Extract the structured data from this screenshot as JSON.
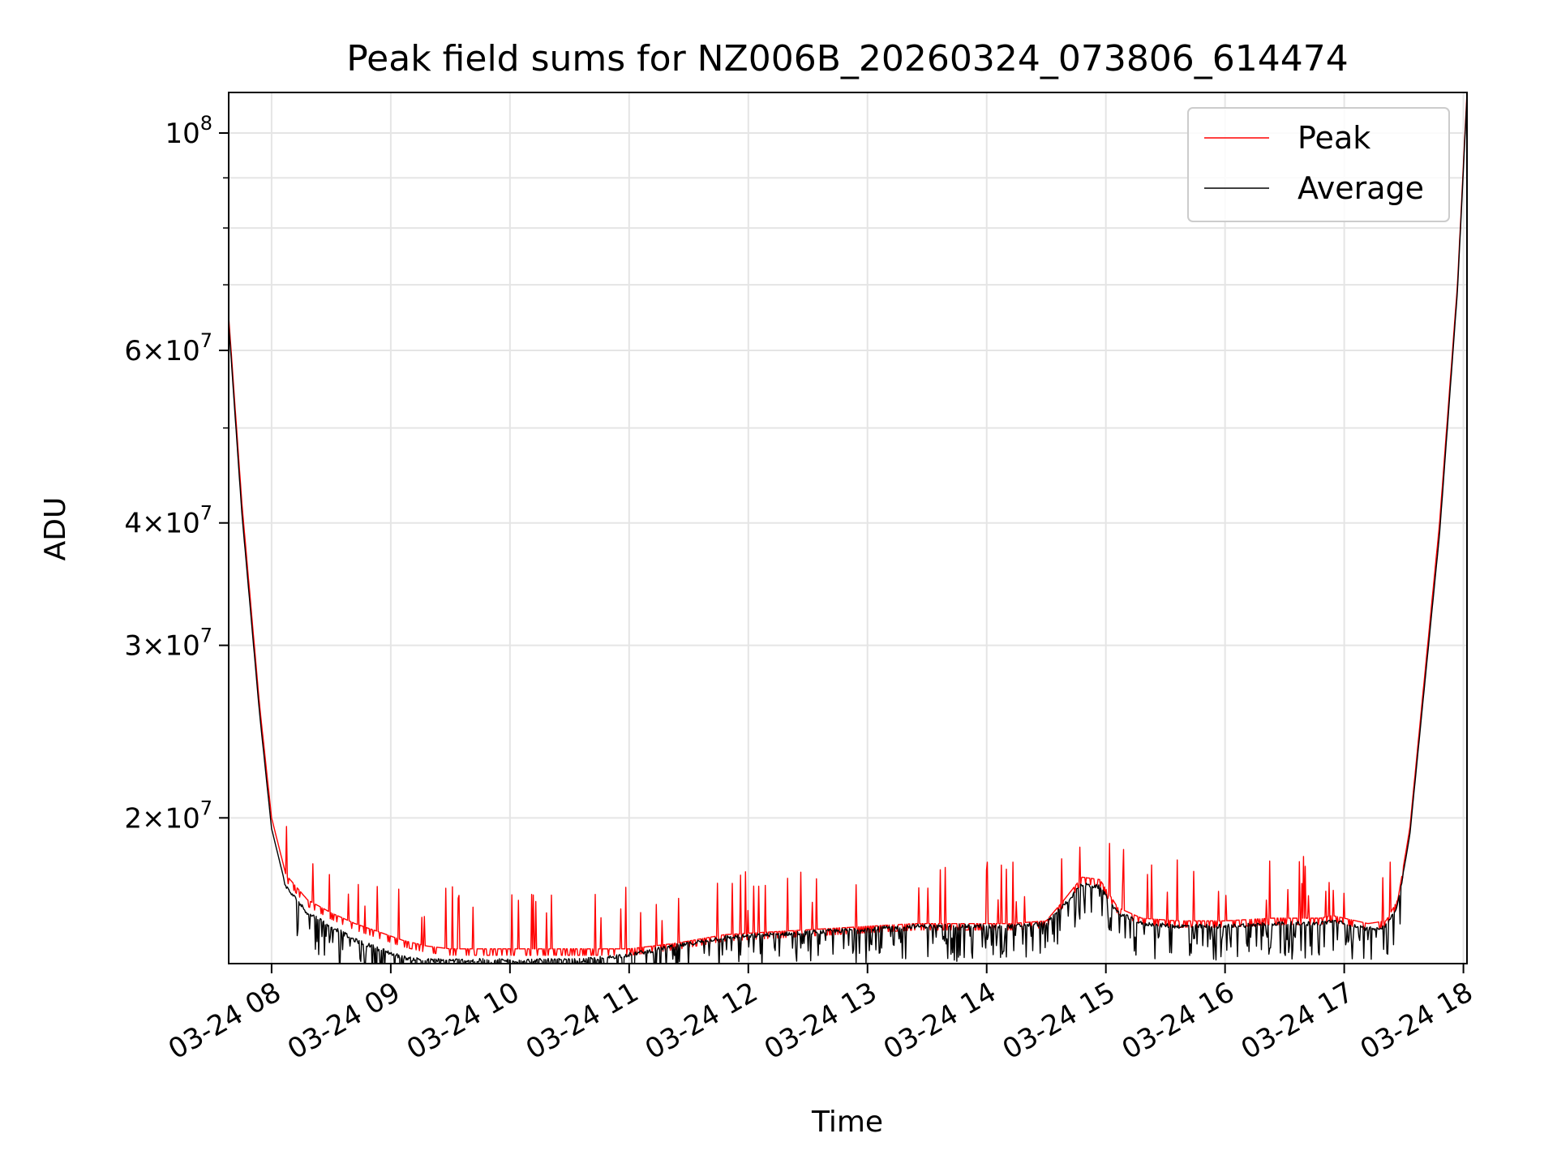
{
  "chart_data": {
    "type": "line",
    "title": "Peak field sums for NZ006B_20260324_073806_614474",
    "xlabel": "Time",
    "ylabel": "ADU",
    "y_scale": "log",
    "xlim_hours": [
      7.64,
      18.03
    ],
    "ylim": [
      14200000,
      110000000
    ],
    "grid": true,
    "legend_position": "top-right",
    "x_ticks": [
      {
        "hour": 8,
        "label": "03-24 08"
      },
      {
        "hour": 9,
        "label": "03-24 09"
      },
      {
        "hour": 10,
        "label": "03-24 10"
      },
      {
        "hour": 11,
        "label": "03-24 11"
      },
      {
        "hour": 12,
        "label": "03-24 12"
      },
      {
        "hour": 13,
        "label": "03-24 13"
      },
      {
        "hour": 14,
        "label": "03-24 14"
      },
      {
        "hour": 15,
        "label": "03-24 15"
      },
      {
        "hour": 16,
        "label": "03-24 16"
      },
      {
        "hour": 17,
        "label": "03-24 17"
      },
      {
        "hour": 18,
        "label": "03-24 18"
      }
    ],
    "y_major_ticks": [
      {
        "value": 20000000,
        "mantissa": "2",
        "exponent": "7"
      },
      {
        "value": 30000000,
        "mantissa": "3",
        "exponent": "7"
      },
      {
        "value": 40000000,
        "mantissa": "4",
        "exponent": "7"
      },
      {
        "value": 60000000,
        "mantissa": "6",
        "exponent": "7"
      },
      {
        "value": 100000000,
        "mantissa": "",
        "exponent": "8"
      }
    ],
    "y_minor_ticks": [
      50000000,
      70000000,
      80000000,
      90000000
    ],
    "series": [
      {
        "name": "Peak",
        "color": "#ff0000",
        "x_hours": [
          7.64,
          7.75,
          7.9,
          8.0,
          8.12,
          8.3,
          8.5,
          8.7,
          8.9,
          9.1,
          9.3,
          9.5,
          9.8,
          10.2,
          10.6,
          11.0,
          11.4,
          11.8,
          12.2,
          12.6,
          13.0,
          13.4,
          13.8,
          14.2,
          14.5,
          14.65,
          14.8,
          14.95,
          15.1,
          15.3,
          15.6,
          16.0,
          16.4,
          16.8,
          16.9,
          17.2,
          17.35,
          17.45,
          17.55,
          17.65,
          17.8,
          17.95,
          18.03
        ],
        "values": [
          65000000,
          42000000,
          26000000,
          20000000,
          17500000,
          16500000,
          16000000,
          15600000,
          15300000,
          15000000,
          14800000,
          14700000,
          14700000,
          14700000,
          14700000,
          14700000,
          14900000,
          15200000,
          15300000,
          15400000,
          15500000,
          15600000,
          15600000,
          15600000,
          15700000,
          16500000,
          17400000,
          17300000,
          16200000,
          15800000,
          15700000,
          15700000,
          15800000,
          15800000,
          15900000,
          15600000,
          15700000,
          16500000,
          19500000,
          26000000,
          40000000,
          70000000,
          110000000
        ]
      },
      {
        "name": "Average",
        "color": "#000000",
        "x_hours": [
          7.64,
          7.75,
          7.9,
          8.0,
          8.12,
          8.3,
          8.5,
          8.7,
          8.9,
          9.1,
          9.3,
          9.5,
          9.8,
          10.2,
          10.6,
          11.0,
          11.4,
          11.8,
          12.2,
          12.6,
          13.0,
          13.4,
          13.8,
          14.2,
          14.5,
          14.65,
          14.8,
          14.95,
          15.1,
          15.3,
          15.6,
          16.0,
          16.4,
          16.8,
          16.9,
          17.2,
          17.35,
          17.45,
          17.55,
          17.65,
          17.8,
          17.95,
          18.03
        ],
        "values": [
          64000000,
          41000000,
          25500000,
          19500000,
          17000000,
          16000000,
          15500000,
          15000000,
          14700000,
          14400000,
          14300000,
          14300000,
          14300000,
          14300000,
          14300000,
          14500000,
          14800000,
          15100000,
          15200000,
          15300000,
          15400000,
          15500000,
          15500000,
          15500000,
          15600000,
          16300000,
          17100000,
          17000000,
          16000000,
          15600000,
          15500000,
          15500000,
          15600000,
          15600000,
          15700000,
          15400000,
          15500000,
          16300000,
          19200000,
          25500000,
          39000000,
          69000000,
          109000000
        ]
      }
    ]
  }
}
